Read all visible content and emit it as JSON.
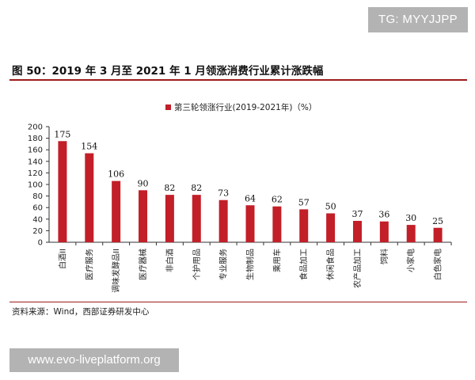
{
  "watermark_top": "TG: MYYJJPP",
  "figure_title": "图 50：2019 年 3 月至 2021 年 1 月领涨消费行业累计涨跌幅",
  "source": "资料来源：Wind，西部证券研发中心",
  "watermark_bottom": "www.evo-liveplatform.org",
  "colors": {
    "bar": "#c21f28",
    "accent_rule": "#9c1b1b"
  },
  "chart_data": {
    "type": "bar",
    "title": "",
    "legend": "第三轮领涨行业(2019-2021年)（%）",
    "legend_position": "top-center",
    "xlabel": "",
    "ylabel": "",
    "ylim": [
      0,
      200
    ],
    "yticks": [
      0,
      20,
      40,
      60,
      80,
      100,
      120,
      140,
      160,
      180,
      200
    ],
    "grid": false,
    "categories": [
      "白酒II",
      "医疗服务",
      "调味发酵品II",
      "医疗器械",
      "非白酒",
      "个护用品",
      "专业服务",
      "生物制品",
      "乘用车",
      "食品加工",
      "休闲食品",
      "农产品加工",
      "饲料",
      "小家电",
      "白色家电"
    ],
    "series": [
      {
        "name": "第三轮领涨行业(2019-2021年)（%）",
        "values": [
          175,
          154,
          106,
          90,
          82,
          82,
          73,
          64,
          62,
          57,
          50,
          37,
          36,
          30,
          25
        ]
      }
    ]
  }
}
